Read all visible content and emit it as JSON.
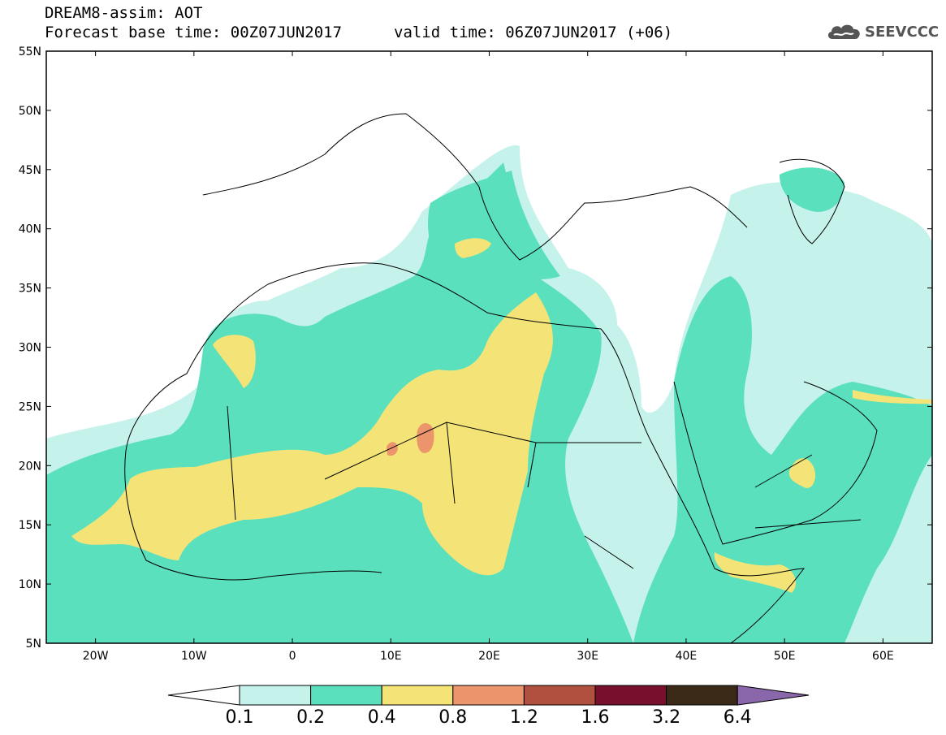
{
  "header": {
    "title": "DREAM8-assim: AOT",
    "forecast_base": "Forecast base time: 00Z07JUN2017",
    "valid_time": "valid time: 06Z07JUN2017 (+06)"
  },
  "logo": {
    "text": "SEEVCCC",
    "icon": "cloud-icon"
  },
  "map": {
    "latitude_labels": [
      "55N",
      "50N",
      "45N",
      "40N",
      "35N",
      "30N",
      "25N",
      "20N",
      "15N",
      "10N",
      "5N"
    ],
    "longitude_labels": [
      "20W",
      "10W",
      "0",
      "10E",
      "20E",
      "30E",
      "40E",
      "50E",
      "60E"
    ],
    "extent": {
      "lon": [
        -25,
        65
      ],
      "lat": [
        5,
        55
      ]
    }
  },
  "colorbar": {
    "thresholds": [
      "0.1",
      "0.2",
      "0.4",
      "0.8",
      "1.2",
      "1.6",
      "3.2",
      "6.4"
    ],
    "colors": [
      "#ffffff",
      "#c6f2ec",
      "#5ae0bd",
      "#f4e477",
      "#ec946c",
      "#b0503e",
      "#780f2c",
      "#3c2a18",
      "#8a66aa"
    ],
    "arrows": "both ends extended"
  }
}
